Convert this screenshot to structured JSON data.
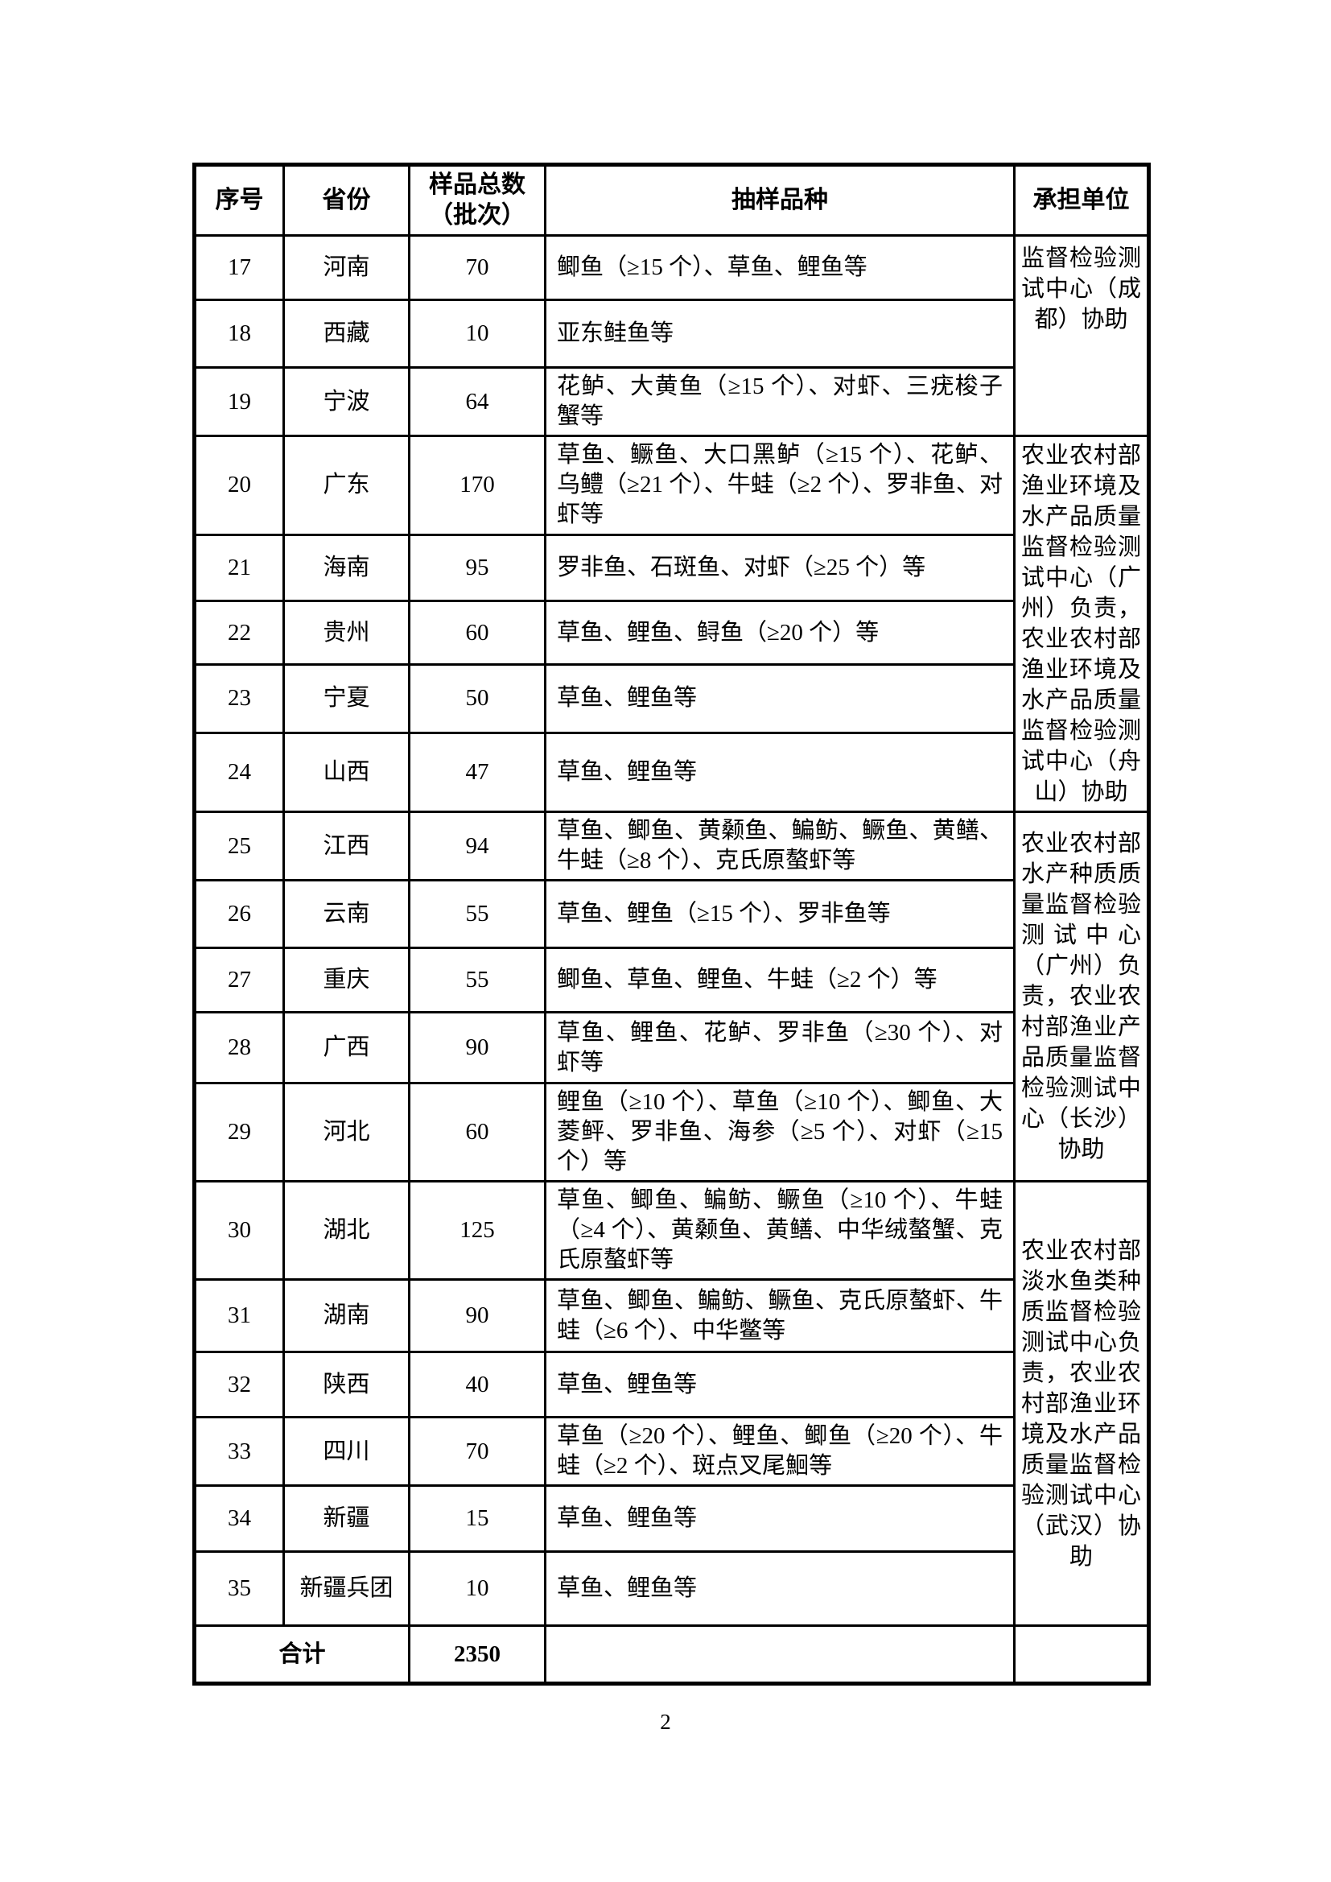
{
  "page_number": "2",
  "table": {
    "headers": {
      "col_no": "序号",
      "col_province": "省份",
      "col_total_line1": "样品总数",
      "col_total_line2": "（批次）",
      "col_species": "抽样品种",
      "col_unit": "承担单位"
    },
    "rows": [
      {
        "no": "17",
        "province": "河南",
        "count": "70",
        "species": "鲫鱼（≥15 个）、草鱼、鲤鱼等",
        "unit_index": 0
      },
      {
        "no": "18",
        "province": "西藏",
        "count": "10",
        "species": "亚东鲑鱼等"
      },
      {
        "no": "19",
        "province": "宁波",
        "count": "64",
        "species": "花鲈、大黄鱼（≥15 个）、对虾、三疣梭子蟹等"
      },
      {
        "no": "20",
        "province": "广东",
        "count": "170",
        "species": "草鱼、鳜鱼、大口黑鲈（≥15 个）、花鲈、乌鳢（≥21 个）、牛蛙（≥2 个）、罗非鱼、对虾等",
        "unit_index": 1
      },
      {
        "no": "21",
        "province": "海南",
        "count": "95",
        "species": "罗非鱼、石斑鱼、对虾（≥25 个）等"
      },
      {
        "no": "22",
        "province": "贵州",
        "count": "60",
        "species": "草鱼、鲤鱼、鲟鱼（≥20 个）等"
      },
      {
        "no": "23",
        "province": "宁夏",
        "count": "50",
        "species": "草鱼、鲤鱼等"
      },
      {
        "no": "24",
        "province": "山西",
        "count": "47",
        "species": "草鱼、鲤鱼等"
      },
      {
        "no": "25",
        "province": "江西",
        "count": "94",
        "species": "草鱼、鲫鱼、黄颡鱼、鳊鲂、鳜鱼、黄鳝、牛蛙（≥8 个）、克氏原螯虾等",
        "unit_index": 2
      },
      {
        "no": "26",
        "province": "云南",
        "count": "55",
        "species": "草鱼、鲤鱼（≥15 个）、罗非鱼等"
      },
      {
        "no": "27",
        "province": "重庆",
        "count": "55",
        "species": "鲫鱼、草鱼、鲤鱼、牛蛙（≥2 个）等"
      },
      {
        "no": "28",
        "province": "广西",
        "count": "90",
        "species": "草鱼、鲤鱼、花鲈、罗非鱼（≥30 个）、对虾等"
      },
      {
        "no": "29",
        "province": "河北",
        "count": "60",
        "species": "鲤鱼（≥10 个）、草鱼（≥10 个）、鲫鱼、大菱鲆、罗非鱼、海参（≥5 个）、对虾（≥15 个）等"
      },
      {
        "no": "30",
        "province": "湖北",
        "count": "125",
        "species": "草鱼、鲫鱼、鳊鲂、鳜鱼（≥10 个）、牛蛙（≥4 个）、黄颡鱼、黄鳝、中华绒螯蟹、克氏原螯虾等",
        "unit_index": 3
      },
      {
        "no": "31",
        "province": "湖南",
        "count": "90",
        "species": "草鱼、鲫鱼、鳊鲂、鳜鱼、克氏原螯虾、牛蛙（≥6 个）、中华鳖等"
      },
      {
        "no": "32",
        "province": "陕西",
        "count": "40",
        "species": "草鱼、鲤鱼等"
      },
      {
        "no": "33",
        "province": "四川",
        "count": "70",
        "species": "草鱼（≥20 个）、鲤鱼、鲫鱼（≥20 个）、牛蛙（≥2 个）、斑点叉尾鮰等"
      },
      {
        "no": "34",
        "province": "新疆",
        "count": "15",
        "species": "草鱼、鲤鱼等"
      },
      {
        "no": "35",
        "province": "新疆兵团",
        "count": "10",
        "species": "草鱼、鲤鱼等"
      }
    ],
    "units": [
      {
        "text": "监督检验测试中心（成都）协助",
        "rowspan": 3
      },
      {
        "text": "农业农村部渔业环境及水产品质量监督检验测试中心（广州）负责，农业农村部渔业环境及水产品质量监督检验测试中心（舟山）协助",
        "rowspan": 5
      },
      {
        "text": "农业农村部水产种质质量监督检验测试中心（广州）负责，农业农村部渔业产品质量监督检验测试中心（长沙）协助",
        "rowspan": 5
      },
      {
        "text": "农业农村部淡水鱼类种质监督检验测试中心负责，农业农村部渔业环境及水产品质量监督检验测试中心（武汉）协助",
        "rowspan": 6
      }
    ],
    "total": {
      "label": "合计",
      "count": "2350"
    }
  }
}
